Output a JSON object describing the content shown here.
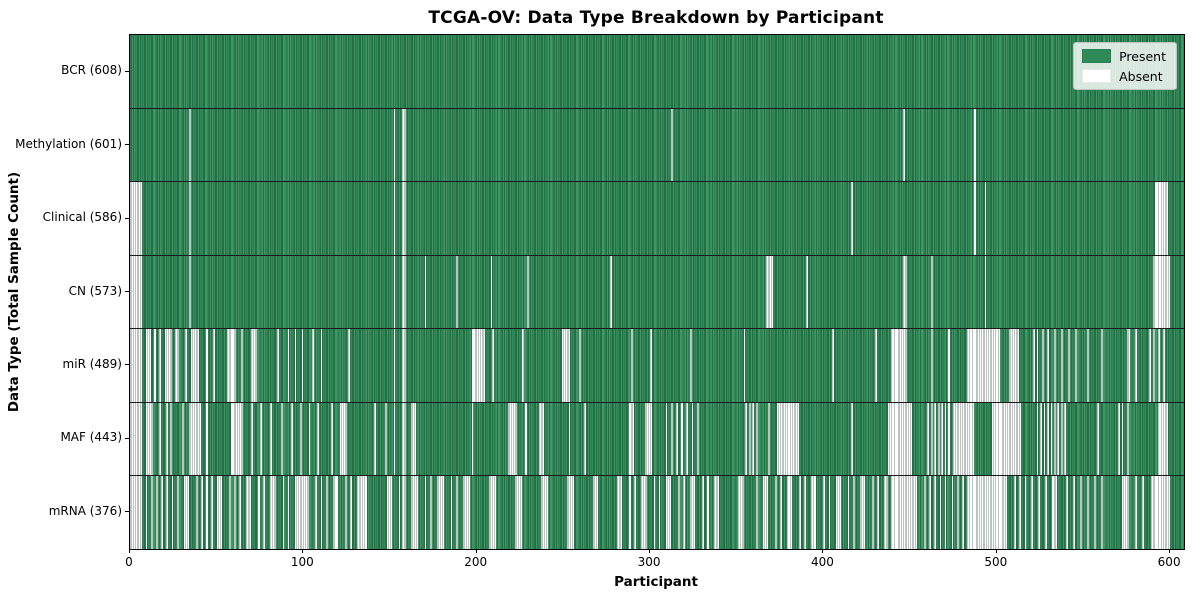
{
  "title": "TCGA-OV: Data Type Breakdown by Participant",
  "axes": {
    "xlabel": "Participant",
    "ylabel": "Data Type (Total Sample Count)"
  },
  "legend": {
    "present": "Present",
    "absent": "Absent"
  },
  "colors": {
    "present": "#2e8b57",
    "absent": "#ffffff"
  },
  "chart_data": {
    "type": "heatmap",
    "title": "TCGA-OV: Data Type Breakdown by Participant",
    "xlabel": "Participant",
    "ylabel": "Data Type (Total Sample Count)",
    "legend_entries": [
      "Present",
      "Absent"
    ],
    "legend_position": "upper right",
    "grid": false,
    "n_participants": 608,
    "xlim": [
      0,
      608
    ],
    "x_ticks": [
      0,
      100,
      200,
      300,
      400,
      500,
      600
    ],
    "cell_states": {
      "present": 1,
      "absent": 0
    },
    "rows": [
      {
        "label": "BCR (608)",
        "data_type": "BCR",
        "present_count": 608,
        "absent_count": 0,
        "absent_ranges": []
      },
      {
        "label": "Methylation (601)",
        "data_type": "Methylation",
        "present_count": 601,
        "absent_count": 7,
        "absent_ranges": [
          [
            34,
            1
          ],
          [
            152,
            1
          ],
          [
            157,
            2
          ],
          [
            312,
            1
          ],
          [
            446,
            1
          ],
          [
            487,
            1
          ]
        ]
      },
      {
        "label": "Clinical (586)",
        "data_type": "Clinical",
        "present_count": 586,
        "absent_count": 22,
        "absent_ranges": [
          [
            0,
            7
          ],
          [
            34,
            1
          ],
          [
            152,
            1
          ],
          [
            157,
            2
          ],
          [
            416,
            1
          ],
          [
            487,
            1
          ],
          [
            493,
            1
          ],
          [
            591,
            8
          ]
        ]
      },
      {
        "label": "CN (573)",
        "data_type": "CN",
        "present_count": 573,
        "absent_count": 35,
        "absent_ranges": [
          [
            0,
            7
          ],
          [
            34,
            1
          ],
          [
            152,
            1
          ],
          [
            157,
            2
          ],
          [
            170,
            1
          ],
          [
            188,
            1
          ],
          [
            208,
            1
          ],
          [
            229,
            1
          ],
          [
            277,
            1
          ],
          [
            367,
            4
          ],
          [
            390,
            1
          ],
          [
            446,
            2
          ],
          [
            462,
            1
          ],
          [
            493,
            1
          ],
          [
            590,
            10
          ]
        ]
      },
      {
        "label": "miR (489)",
        "data_type": "miR",
        "present_count": 489,
        "absent_count": 119,
        "absent_ranges": [
          [
            0,
            7
          ],
          [
            9,
            3
          ],
          [
            14,
            1
          ],
          [
            17,
            1
          ],
          [
            20,
            4
          ],
          [
            26,
            2
          ],
          [
            32,
            1
          ],
          [
            35,
            5
          ],
          [
            44,
            1
          ],
          [
            48,
            1
          ],
          [
            56,
            5
          ],
          [
            64,
            1
          ],
          [
            70,
            3
          ],
          [
            85,
            1
          ],
          [
            91,
            1
          ],
          [
            95,
            1
          ],
          [
            99,
            1
          ],
          [
            105,
            1
          ],
          [
            110,
            1
          ],
          [
            126,
            1
          ],
          [
            152,
            1
          ],
          [
            157,
            2
          ],
          [
            197,
            8
          ],
          [
            209,
            1
          ],
          [
            226,
            1
          ],
          [
            249,
            5
          ],
          [
            259,
            1
          ],
          [
            289,
            1
          ],
          [
            300,
            1
          ],
          [
            323,
            1
          ],
          [
            354,
            1
          ],
          [
            405,
            1
          ],
          [
            430,
            1
          ],
          [
            439,
            9
          ],
          [
            462,
            1
          ],
          [
            472,
            1
          ],
          [
            483,
            19
          ],
          [
            507,
            6
          ],
          [
            521,
            1
          ],
          [
            523,
            1
          ],
          [
            526,
            1
          ],
          [
            529,
            1
          ],
          [
            533,
            1
          ],
          [
            537,
            1
          ],
          [
            541,
            1
          ],
          [
            545,
            1
          ],
          [
            552,
            1
          ],
          [
            560,
            1
          ],
          [
            575,
            2
          ],
          [
            580,
            1
          ],
          [
            588,
            1
          ],
          [
            590,
            1
          ],
          [
            593,
            1
          ],
          [
            596,
            1
          ]
        ]
      },
      {
        "label": "MAF (443)",
        "data_type": "MAF",
        "present_count": 443,
        "absent_count": 165,
        "absent_ranges": [
          [
            0,
            7
          ],
          [
            9,
            4
          ],
          [
            17,
            1
          ],
          [
            21,
            1
          ],
          [
            23,
            1
          ],
          [
            30,
            1
          ],
          [
            34,
            7
          ],
          [
            44,
            1
          ],
          [
            58,
            7
          ],
          [
            70,
            1
          ],
          [
            75,
            1
          ],
          [
            81,
            1
          ],
          [
            87,
            1
          ],
          [
            93,
            1
          ],
          [
            98,
            1
          ],
          [
            103,
            1
          ],
          [
            108,
            1
          ],
          [
            116,
            1
          ],
          [
            121,
            4
          ],
          [
            141,
            1
          ],
          [
            147,
            1
          ],
          [
            152,
            1
          ],
          [
            157,
            2
          ],
          [
            162,
            3
          ],
          [
            197,
            1
          ],
          [
            218,
            5
          ],
          [
            228,
            1
          ],
          [
            236,
            3
          ],
          [
            253,
            1
          ],
          [
            262,
            1
          ],
          [
            288,
            3
          ],
          [
            297,
            4
          ],
          [
            309,
            1
          ],
          [
            312,
            1
          ],
          [
            315,
            1
          ],
          [
            318,
            1
          ],
          [
            321,
            1
          ],
          [
            324,
            1
          ],
          [
            327,
            1
          ],
          [
            355,
            1
          ],
          [
            357,
            1
          ],
          [
            359,
            1
          ],
          [
            361,
            1
          ],
          [
            368,
            1
          ],
          [
            373,
            13
          ],
          [
            416,
            1
          ],
          [
            437,
            14
          ],
          [
            460,
            1
          ],
          [
            462,
            1
          ],
          [
            464,
            1
          ],
          [
            466,
            1
          ],
          [
            468,
            1
          ],
          [
            470,
            1
          ],
          [
            472,
            1
          ],
          [
            475,
            12
          ],
          [
            497,
            17
          ],
          [
            523,
            1
          ],
          [
            525,
            1
          ],
          [
            527,
            1
          ],
          [
            529,
            1
          ],
          [
            531,
            1
          ],
          [
            533,
            1
          ],
          [
            535,
            1
          ],
          [
            537,
            1
          ],
          [
            539,
            1
          ],
          [
            558,
            1
          ],
          [
            570,
            1
          ],
          [
            572,
            1
          ],
          [
            575,
            1
          ],
          [
            593,
            6
          ]
        ]
      },
      {
        "label": "mRNA (376)",
        "data_type": "mRNA",
        "present_count": 376,
        "absent_count": 232,
        "absent_ranges": [
          [
            0,
            7
          ],
          [
            9,
            1
          ],
          [
            12,
            1
          ],
          [
            15,
            1
          ],
          [
            18,
            1
          ],
          [
            21,
            1
          ],
          [
            24,
            1
          ],
          [
            27,
            1
          ],
          [
            31,
            3
          ],
          [
            38,
            1
          ],
          [
            41,
            1
          ],
          [
            44,
            1
          ],
          [
            47,
            1
          ],
          [
            50,
            3
          ],
          [
            57,
            1
          ],
          [
            60,
            1
          ],
          [
            63,
            1
          ],
          [
            67,
            3
          ],
          [
            74,
            1
          ],
          [
            77,
            1
          ],
          [
            81,
            3
          ],
          [
            88,
            1
          ],
          [
            91,
            1
          ],
          [
            95,
            8
          ],
          [
            107,
            1
          ],
          [
            110,
            1
          ],
          [
            113,
            1
          ],
          [
            117,
            3
          ],
          [
            124,
            1
          ],
          [
            127,
            1
          ],
          [
            131,
            6
          ],
          [
            148,
            3
          ],
          [
            155,
            1
          ],
          [
            157,
            2
          ],
          [
            162,
            4
          ],
          [
            170,
            1
          ],
          [
            173,
            1
          ],
          [
            177,
            4
          ],
          [
            185,
            1
          ],
          [
            188,
            1
          ],
          [
            192,
            4
          ],
          [
            207,
            4
          ],
          [
            222,
            4
          ],
          [
            237,
            4
          ],
          [
            252,
            4
          ],
          [
            267,
            3
          ],
          [
            281,
            3
          ],
          [
            288,
            1
          ],
          [
            291,
            1
          ],
          [
            295,
            3
          ],
          [
            302,
            1
          ],
          [
            305,
            1
          ],
          [
            309,
            3
          ],
          [
            316,
            1
          ],
          [
            319,
            1
          ],
          [
            323,
            3
          ],
          [
            330,
            1
          ],
          [
            333,
            1
          ],
          [
            337,
            3
          ],
          [
            351,
            3
          ],
          [
            361,
            1
          ],
          [
            365,
            3
          ],
          [
            372,
            1
          ],
          [
            375,
            1
          ],
          [
            379,
            3
          ],
          [
            386,
            1
          ],
          [
            389,
            1
          ],
          [
            393,
            3
          ],
          [
            400,
            1
          ],
          [
            403,
            1
          ],
          [
            407,
            3
          ],
          [
            414,
            1
          ],
          [
            417,
            1
          ],
          [
            421,
            3
          ],
          [
            428,
            1
          ],
          [
            431,
            1
          ],
          [
            435,
            2
          ],
          [
            439,
            15
          ],
          [
            458,
            1
          ],
          [
            461,
            1
          ],
          [
            464,
            1
          ],
          [
            467,
            1
          ],
          [
            470,
            1
          ],
          [
            474,
            1
          ],
          [
            477,
            1
          ],
          [
            480,
            1
          ],
          [
            483,
            23
          ],
          [
            510,
            1
          ],
          [
            513,
            1
          ],
          [
            516,
            1
          ],
          [
            520,
            1
          ],
          [
            524,
            1
          ],
          [
            528,
            1
          ],
          [
            532,
            3
          ],
          [
            540,
            1
          ],
          [
            544,
            1
          ],
          [
            548,
            1
          ],
          [
            552,
            1
          ],
          [
            556,
            1
          ],
          [
            560,
            1
          ],
          [
            572,
            4
          ],
          [
            580,
            1
          ],
          [
            584,
            1
          ],
          [
            589,
            11
          ]
        ]
      }
    ]
  }
}
